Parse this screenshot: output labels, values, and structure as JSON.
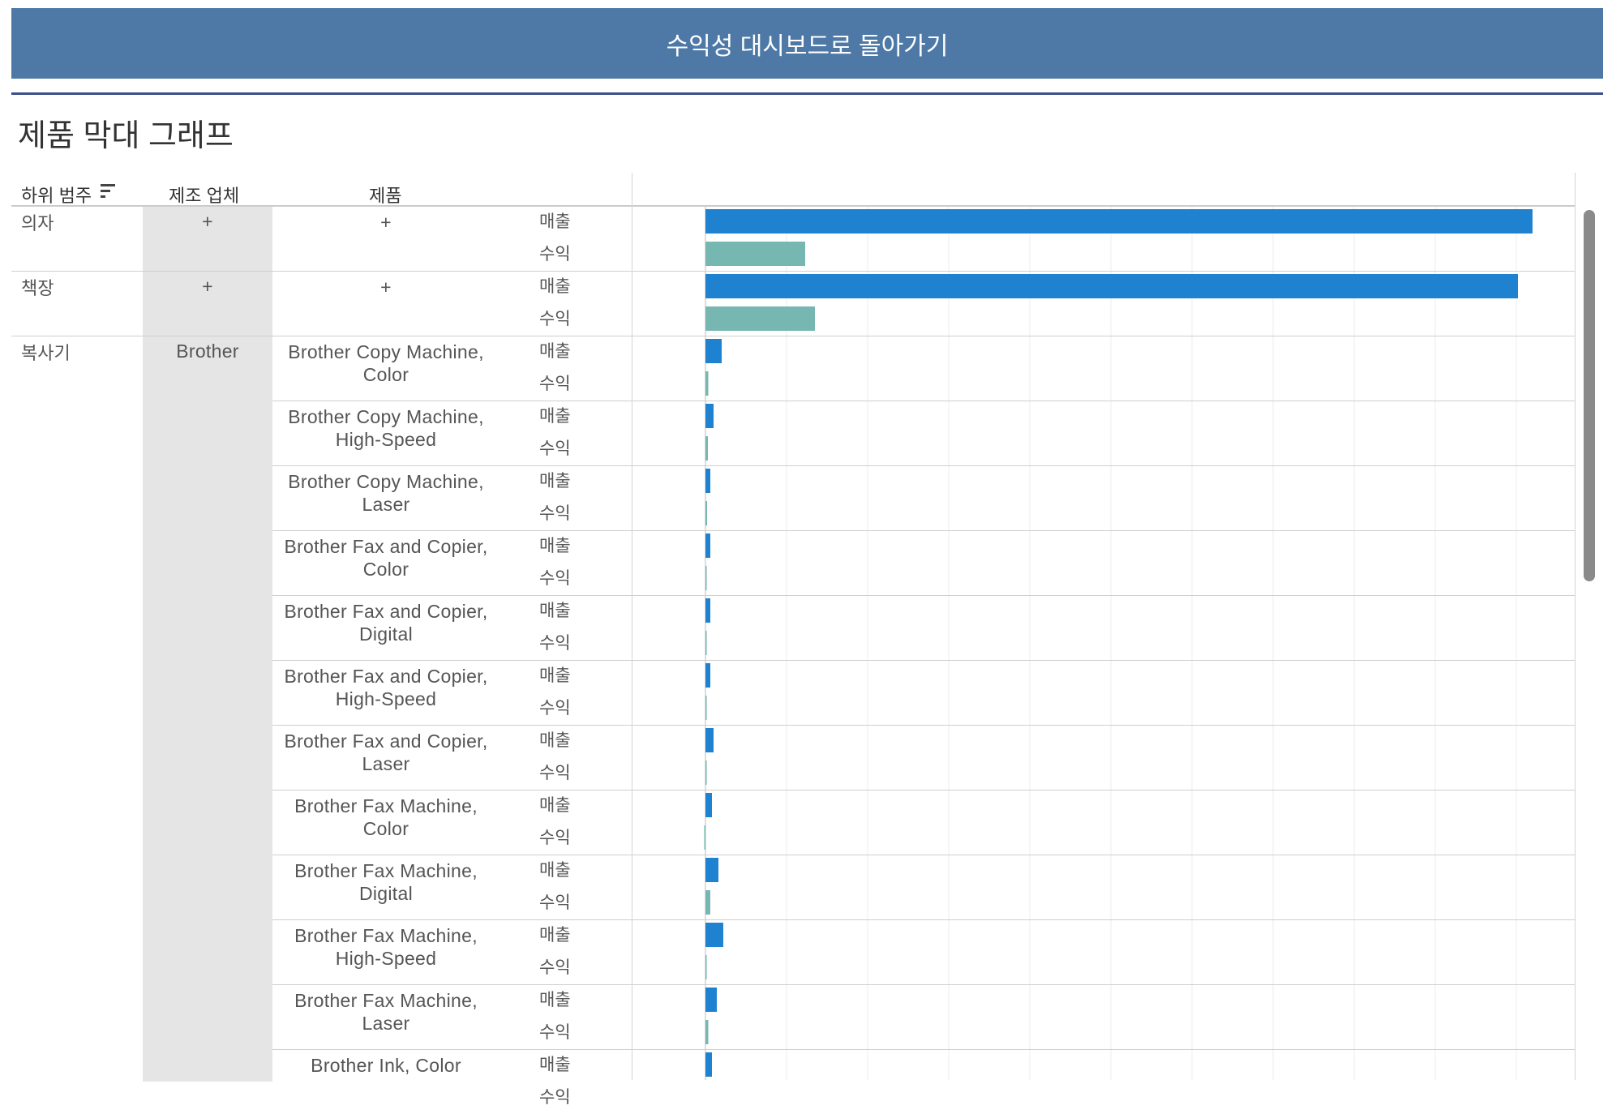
{
  "back_button_label": "수익성 대시보드로 돌아가기",
  "title": "제품 막대 그래프",
  "columns": {
    "subcategory": "하위 범주",
    "manufacturer": "제조 업체",
    "product": "제품"
  },
  "measure_names": {
    "sales": "매출",
    "profit": "수익"
  },
  "colors": {
    "sales": "#1f82d0",
    "profit": "#76b7b2",
    "header": "#4e79a7"
  },
  "icons": {
    "sort": "sort-descending-icon"
  },
  "chart_data": {
    "type": "bar",
    "orientation": "horizontal",
    "grid": true,
    "series": [
      {
        "name": "매출",
        "color": "#1f82d0"
      },
      {
        "name": "수익",
        "color": "#76b7b2"
      }
    ],
    "rows": [
      {
        "subcategory": "의자",
        "manufacturer": "+",
        "product": "+",
        "sales": 102,
        "profit": 12.3
      },
      {
        "subcategory": "책장",
        "manufacturer": "+",
        "product": "+",
        "sales": 100.2,
        "profit": 13.5
      },
      {
        "subcategory": "복사기",
        "manufacturer": "Brother",
        "product": "Brother Copy Machine, Color",
        "sales": 2.0,
        "profit": 0.35
      },
      {
        "subcategory": "",
        "manufacturer": "",
        "product": "Brother Copy Machine, High-Speed",
        "sales": 1.0,
        "profit": 0.3
      },
      {
        "subcategory": "",
        "manufacturer": "",
        "product": "Brother Copy Machine, Laser",
        "sales": 0.6,
        "profit": 0.2
      },
      {
        "subcategory": "",
        "manufacturer": "",
        "product": "Brother Fax and Copier, Color",
        "sales": 0.6,
        "profit": 0.15
      },
      {
        "subcategory": "",
        "manufacturer": "",
        "product": "Brother Fax and Copier, Digital",
        "sales": 0.6,
        "profit": 0.15
      },
      {
        "subcategory": "",
        "manufacturer": "",
        "product": "Brother Fax and Copier, High-Speed",
        "sales": 0.6,
        "profit": 0.15
      },
      {
        "subcategory": "",
        "manufacturer": "",
        "product": "Brother Fax and Copier, Laser",
        "sales": 1.0,
        "profit": 0.15
      },
      {
        "subcategory": "",
        "manufacturer": "",
        "product": "Brother Fax Machine, Color",
        "sales": 0.8,
        "profit": -0.15
      },
      {
        "subcategory": "",
        "manufacturer": "",
        "product": "Brother Fax Machine, Digital",
        "sales": 1.6,
        "profit": 0.6
      },
      {
        "subcategory": "",
        "manufacturer": "",
        "product": "Brother Fax Machine, High-Speed",
        "sales": 2.2,
        "profit": 0.15
      },
      {
        "subcategory": "",
        "manufacturer": "",
        "product": "Brother Fax Machine, Laser",
        "sales": 1.4,
        "profit": 0.35
      },
      {
        "subcategory": "",
        "manufacturer": "",
        "product": "Brother Ink, Color",
        "sales": 0.8,
        "profit": 0.0
      }
    ]
  }
}
